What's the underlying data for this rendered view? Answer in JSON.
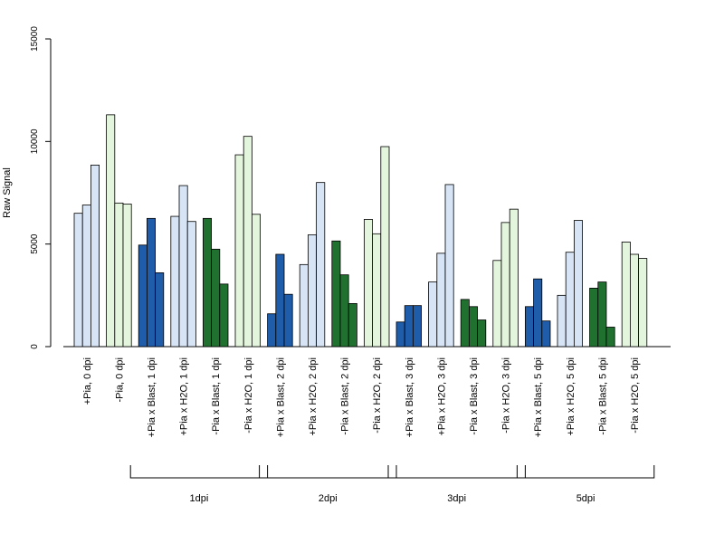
{
  "chart_data": {
    "type": "bar",
    "title": "",
    "xlabel": "",
    "ylabel": "Raw Signal",
    "ylim": [
      0,
      15000
    ],
    "yticks": [
      0,
      5000,
      10000,
      15000
    ],
    "grid": false,
    "categories": [
      "+Pia, 0 dpi",
      "-Pia, 0 dpi",
      "+Pia x Blast, 1 dpi",
      "+Pia x H2O, 1 dpi",
      "-Pia x Blast, 1 dpi",
      "-Pia x H2O, 1 dpi",
      "+Pia x Blast, 2 dpi",
      "+Pia x H2O, 2 dpi",
      "-Pia x Blast, 2 dpi",
      "-Pia x H2O, 2 dpi",
      "+Pia x Blast, 3 dpi",
      "+Pia x H2O, 3 dpi",
      "-Pia x Blast, 3 dpi",
      "-Pia x H2O, 3 dpi",
      "+Pia x Blast, 5 dpi",
      "+Pia x H2O, 5 dpi",
      "-Pia x Blast, 5 dpi",
      "-Pia x H2O, 5 dpi"
    ],
    "replicate_values": [
      [
        6500,
        6900,
        8850
      ],
      [
        11300,
        7000,
        6950
      ],
      [
        4950,
        6250,
        3600
      ],
      [
        6350,
        7850,
        6100
      ],
      [
        6250,
        4750,
        3050
      ],
      [
        9350,
        10250,
        6450
      ],
      [
        1600,
        4500,
        2550
      ],
      [
        4000,
        5450,
        8000
      ],
      [
        5150,
        3500,
        2100
      ],
      [
        6200,
        5500,
        9750
      ],
      [
        1200,
        2000,
        2000
      ],
      [
        3150,
        4550,
        7900
      ],
      [
        2300,
        1950,
        1300
      ],
      [
        4200,
        6050,
        6700
      ],
      [
        1950,
        3300,
        1250
      ],
      [
        2500,
        4600,
        6150
      ],
      [
        2850,
        3150,
        950
      ],
      [
        5100,
        4500,
        4300
      ]
    ],
    "bar_colors": [
      "#d6e4f5",
      "#e3f5dc",
      "#1f5ca9",
      "#d6e4f5",
      "#207030",
      "#e3f5dc",
      "#1f5ca9",
      "#d6e4f5",
      "#207030",
      "#e3f5dc",
      "#1f5ca9",
      "#d6e4f5",
      "#207030",
      "#e3f5dc",
      "#1f5ca9",
      "#d6e4f5",
      "#207030",
      "#e3f5dc"
    ],
    "groups": [
      {
        "label": "1dpi",
        "from": 2,
        "to": 5
      },
      {
        "label": "2dpi",
        "from": 6,
        "to": 9
      },
      {
        "label": "3dpi",
        "from": 10,
        "to": 13
      },
      {
        "label": "5dpi",
        "from": 14,
        "to": 17
      }
    ]
  }
}
